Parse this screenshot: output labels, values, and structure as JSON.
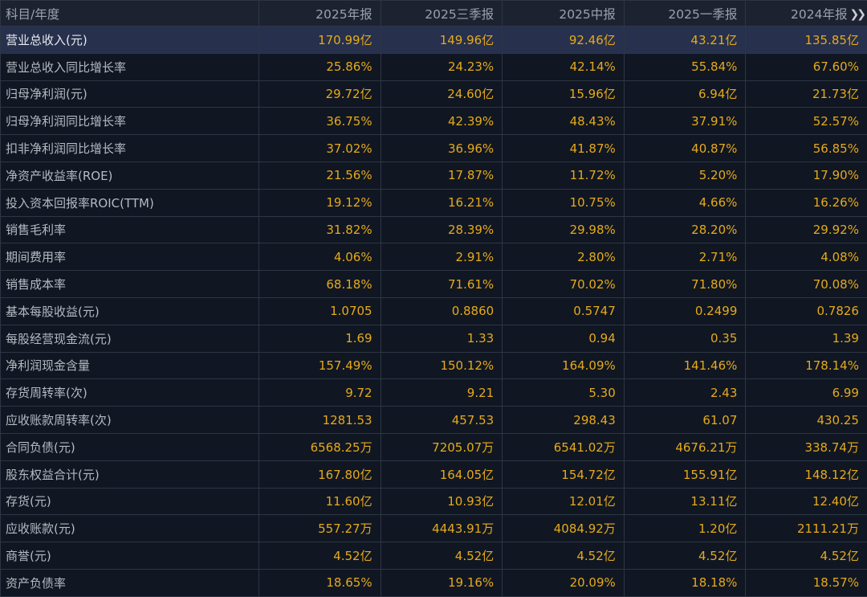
{
  "header": {
    "label": "科目/年度",
    "periods": [
      "2025年报",
      "2025三季报",
      "2025中报",
      "2025一季报",
      "2024年报"
    ],
    "more_icon": "double-chevron-right-icon"
  },
  "rows": [
    {
      "label": "营业总收入(元)",
      "values": [
        "170.99亿",
        "149.96亿",
        "92.46亿",
        "43.21亿",
        "135.85亿"
      ]
    },
    {
      "label": "营业总收入同比增长率",
      "values": [
        "25.86%",
        "24.23%",
        "42.14%",
        "55.84%",
        "67.60%"
      ]
    },
    {
      "label": "归母净利润(元)",
      "values": [
        "29.72亿",
        "24.60亿",
        "15.96亿",
        "6.94亿",
        "21.73亿"
      ]
    },
    {
      "label": "归母净利润同比增长率",
      "values": [
        "36.75%",
        "42.39%",
        "48.43%",
        "37.91%",
        "52.57%"
      ]
    },
    {
      "label": "扣非净利润同比增长率",
      "values": [
        "37.02%",
        "36.96%",
        "41.87%",
        "40.87%",
        "56.85%"
      ]
    },
    {
      "label": "净资产收益率(ROE)",
      "values": [
        "21.56%",
        "17.87%",
        "11.72%",
        "5.20%",
        "17.90%"
      ]
    },
    {
      "label": "投入资本回报率ROIC(TTM)",
      "values": [
        "19.12%",
        "16.21%",
        "10.75%",
        "4.66%",
        "16.26%"
      ]
    },
    {
      "label": "销售毛利率",
      "values": [
        "31.82%",
        "28.39%",
        "29.98%",
        "28.20%",
        "29.92%"
      ]
    },
    {
      "label": "期间费用率",
      "values": [
        "4.06%",
        "2.91%",
        "2.80%",
        "2.71%",
        "4.08%"
      ]
    },
    {
      "label": "销售成本率",
      "values": [
        "68.18%",
        "71.61%",
        "70.02%",
        "71.80%",
        "70.08%"
      ]
    },
    {
      "label": "基本每股收益(元)",
      "values": [
        "1.0705",
        "0.8860",
        "0.5747",
        "0.2499",
        "0.7826"
      ]
    },
    {
      "label": "每股经营现金流(元)",
      "values": [
        "1.69",
        "1.33",
        "0.94",
        "0.35",
        "1.39"
      ]
    },
    {
      "label": "净利润现金含量",
      "values": [
        "157.49%",
        "150.12%",
        "164.09%",
        "141.46%",
        "178.14%"
      ]
    },
    {
      "label": "存货周转率(次)",
      "values": [
        "9.72",
        "9.21",
        "5.30",
        "2.43",
        "6.99"
      ]
    },
    {
      "label": "应收账款周转率(次)",
      "values": [
        "1281.53",
        "457.53",
        "298.43",
        "61.07",
        "430.25"
      ]
    },
    {
      "label": "合同负债(元)",
      "values": [
        "6568.25万",
        "7205.07万",
        "6541.02万",
        "4676.21万",
        "338.74万"
      ]
    },
    {
      "label": "股东权益合计(元)",
      "values": [
        "167.80亿",
        "164.05亿",
        "154.72亿",
        "155.91亿",
        "148.12亿"
      ]
    },
    {
      "label": "存货(元)",
      "values": [
        "11.60亿",
        "10.93亿",
        "12.01亿",
        "13.11亿",
        "12.40亿"
      ]
    },
    {
      "label": "应收账款(元)",
      "values": [
        "557.27万",
        "4443.91万",
        "4084.92万",
        "1.20亿",
        "2111.21万"
      ]
    },
    {
      "label": "商誉(元)",
      "values": [
        "4.52亿",
        "4.52亿",
        "4.52亿",
        "4.52亿",
        "4.52亿"
      ]
    },
    {
      "label": "资产负债率",
      "values": [
        "18.65%",
        "19.16%",
        "20.09%",
        "18.18%",
        "18.57%"
      ]
    }
  ]
}
